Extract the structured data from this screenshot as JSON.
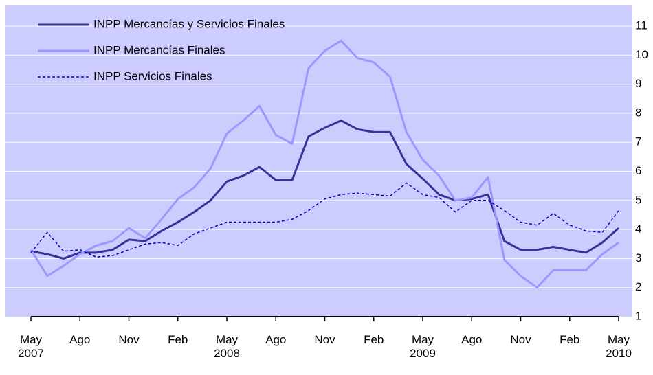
{
  "chart_data": {
    "type": "line",
    "categories": [
      "May 2007",
      null,
      null,
      "Ago",
      null,
      null,
      "Nov",
      null,
      null,
      "Feb",
      null,
      null,
      "May 2008",
      null,
      null,
      "Ago",
      null,
      null,
      "Nov",
      null,
      null,
      "Feb",
      null,
      null,
      "May 2009",
      null,
      null,
      "Ago",
      null,
      null,
      "Nov",
      null,
      null,
      "Feb",
      null,
      null,
      "May 2010"
    ],
    "series": [
      {
        "name": "INPP Mercancías y Servicios Finales",
        "color": "#333399",
        "dashed": false,
        "values": [
          3.25,
          3.15,
          3.0,
          3.2,
          3.2,
          3.3,
          3.65,
          3.6,
          3.95,
          4.25,
          4.6,
          5.0,
          5.65,
          5.85,
          6.15,
          5.7,
          5.7,
          7.2,
          7.5,
          7.75,
          7.45,
          7.35,
          7.35,
          6.25,
          5.75,
          5.2,
          5.0,
          5.05,
          5.2,
          3.6,
          3.3,
          3.3,
          3.4,
          3.3,
          3.2,
          3.55,
          4.05
        ]
      },
      {
        "name": "INPP Mercancías Finales",
        "color": "#9999ff",
        "dashed": false,
        "values": [
          3.3,
          2.4,
          2.75,
          3.15,
          3.45,
          3.6,
          4.05,
          3.7,
          4.35,
          5.05,
          5.45,
          6.1,
          7.3,
          7.75,
          8.25,
          7.25,
          6.95,
          9.55,
          10.15,
          10.5,
          9.9,
          9.75,
          9.25,
          7.35,
          6.4,
          5.85,
          5.0,
          5.1,
          5.8,
          2.95,
          2.4,
          2.0,
          2.6,
          2.6,
          2.6,
          3.15,
          3.55
        ]
      },
      {
        "name": "INPP Servicios  Finales",
        "color": "#0000cc",
        "dashed": true,
        "values": [
          3.2,
          3.9,
          3.25,
          3.3,
          3.05,
          3.1,
          3.3,
          3.5,
          3.55,
          3.45,
          3.85,
          4.05,
          4.25,
          4.25,
          4.25,
          4.25,
          4.35,
          4.65,
          5.05,
          5.2,
          5.25,
          5.2,
          5.15,
          5.6,
          5.2,
          5.1,
          4.6,
          5.0,
          5.0,
          4.65,
          4.25,
          4.15,
          4.55,
          4.15,
          3.95,
          3.9,
          4.65
        ]
      }
    ],
    "ylim": [
      1,
      11
    ],
    "yticks": [
      1,
      2,
      3,
      4,
      5,
      6,
      7,
      8,
      9,
      10,
      11
    ],
    "grid": true,
    "legend": "upper left",
    "y_axis_side": "right"
  }
}
